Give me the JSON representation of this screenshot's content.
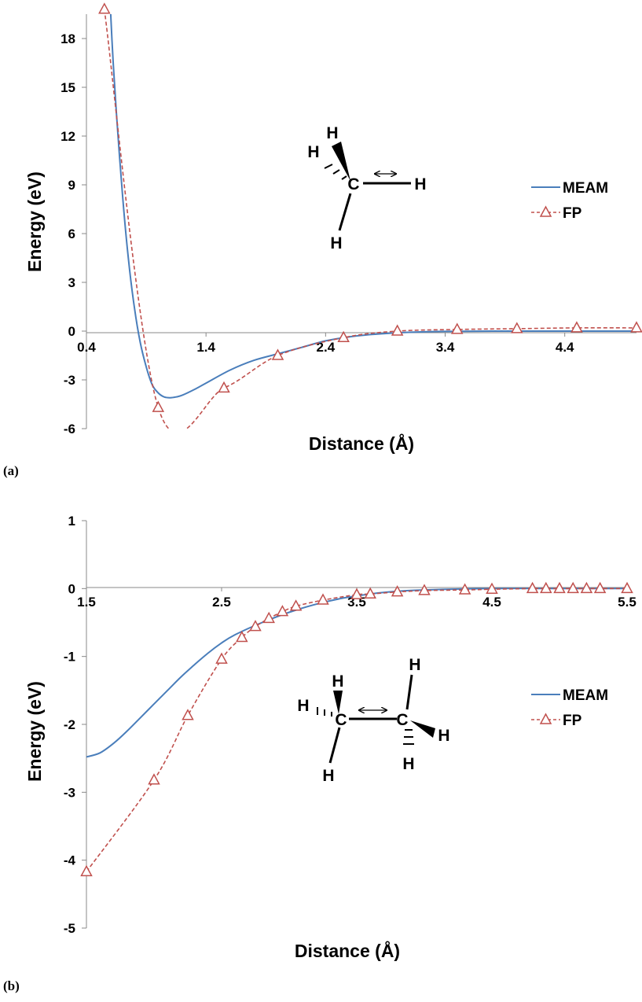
{
  "chart_data": [
    {
      "type": "line",
      "panel_label": "(a)",
      "xlabel": "Distance (Å)",
      "ylabel": "Energy (eV)",
      "xlim": [
        0.4,
        5.0
      ],
      "ylim": [
        -6,
        19.5
      ],
      "xticks": [
        "0.4",
        "1.4",
        "2.4",
        "3.4",
        "4.4"
      ],
      "yticks": [
        "18",
        "15",
        "12",
        "9",
        "6",
        "3",
        "0",
        "-3",
        "-6"
      ],
      "grid": false,
      "legend_position": "right",
      "molecule_atoms": [
        "H",
        "H",
        "C",
        "H",
        "H"
      ],
      "series": [
        {
          "name": "MEAM",
          "color": "#4a7ebb",
          "style": "solid",
          "x": [
            0.6,
            0.62,
            0.65,
            0.7,
            0.75,
            0.8,
            0.85,
            0.9,
            0.95,
            1.0,
            1.05,
            1.1,
            1.15,
            1.2,
            1.3,
            1.4,
            1.6,
            1.8,
            2.0,
            2.2,
            2.4,
            2.6,
            2.8,
            3.0,
            3.2,
            3.4,
            3.8,
            4.2,
            4.6,
            5.0
          ],
          "values": [
            20.0,
            17.0,
            13.5,
            8.5,
            4.5,
            1.5,
            -0.7,
            -2.2,
            -3.3,
            -3.8,
            -4.05,
            -4.1,
            -4.05,
            -3.95,
            -3.6,
            -3.2,
            -2.4,
            -1.8,
            -1.4,
            -1.0,
            -0.6,
            -0.35,
            -0.2,
            -0.1,
            -0.05,
            -0.02,
            0.0,
            0.0,
            0.0,
            0.0
          ]
        },
        {
          "name": "FP",
          "color": "#c0504d",
          "style": "dashed",
          "marker": "open-triangle",
          "x": [
            0.55,
            1.0,
            1.55,
            2.0,
            2.55,
            3.0,
            3.5,
            4.0,
            4.5,
            5.0
          ],
          "values": [
            19.8,
            -4.7,
            -3.5,
            -1.5,
            -0.4,
            0.0,
            0.1,
            0.15,
            0.2,
            0.2
          ]
        }
      ]
    },
    {
      "type": "line",
      "panel_label": "(b)",
      "xlabel": "Distance (Å)",
      "ylabel": "Energy (eV)",
      "xlim": [
        1.5,
        5.5
      ],
      "ylim": [
        -5,
        1
      ],
      "xticks": [
        "1.5",
        "2.5",
        "3.5",
        "4.5",
        "5.5"
      ],
      "yticks": [
        "1",
        "0",
        "-1",
        "-2",
        "-3",
        "-4",
        "-5"
      ],
      "grid": false,
      "legend_position": "right",
      "molecule_atoms": [
        "H",
        "H",
        "C",
        "H",
        "H",
        "C",
        "H",
        "H"
      ],
      "series": [
        {
          "name": "MEAM",
          "color": "#4a7ebb",
          "style": "solid",
          "x": [
            1.5,
            1.6,
            1.7,
            1.8,
            1.9,
            2.0,
            2.1,
            2.2,
            2.3,
            2.4,
            2.5,
            2.6,
            2.8,
            3.0,
            3.2,
            3.4,
            3.6,
            3.8,
            4.0,
            4.5,
            5.0,
            5.5
          ],
          "values": [
            -2.48,
            -2.42,
            -2.28,
            -2.1,
            -1.9,
            -1.7,
            -1.5,
            -1.3,
            -1.12,
            -0.95,
            -0.8,
            -0.68,
            -0.5,
            -0.35,
            -0.23,
            -0.14,
            -0.08,
            -0.04,
            -0.02,
            0.0,
            0.0,
            0.0
          ]
        },
        {
          "name": "FP",
          "color": "#c0504d",
          "style": "dashed",
          "marker": "open-triangle",
          "x": [
            1.5,
            2.0,
            2.25,
            2.5,
            2.65,
            2.75,
            2.85,
            2.95,
            3.05,
            3.25,
            3.5,
            3.6,
            3.8,
            4.0,
            4.3,
            4.5,
            4.8,
            4.9,
            5.0,
            5.1,
            5.2,
            5.3,
            5.5
          ],
          "values": [
            -4.17,
            -2.82,
            -1.87,
            -1.04,
            -0.72,
            -0.56,
            -0.44,
            -0.34,
            -0.26,
            -0.17,
            -0.09,
            -0.08,
            -0.05,
            -0.03,
            -0.02,
            -0.01,
            0.0,
            0.0,
            0.0,
            0.0,
            0.0,
            0.0,
            0.0
          ]
        }
      ]
    }
  ]
}
